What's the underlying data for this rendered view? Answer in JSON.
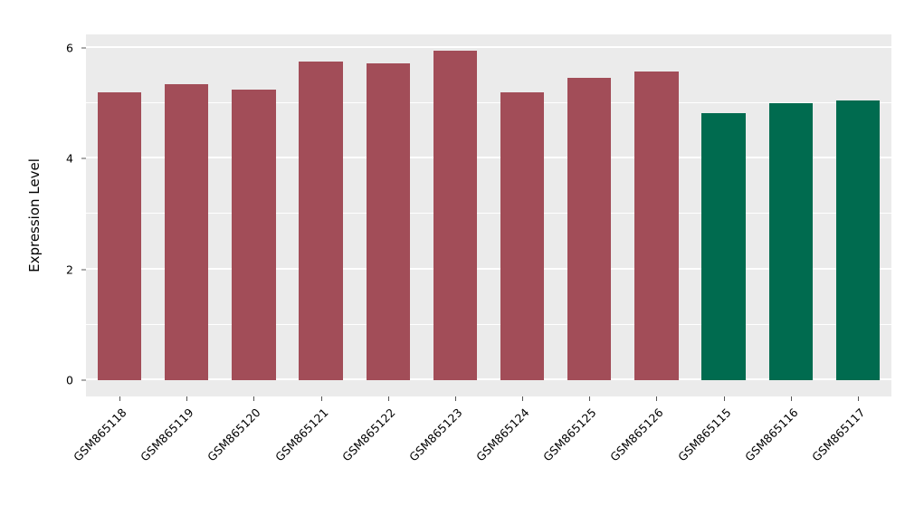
{
  "chart_data": {
    "type": "bar",
    "categories": [
      "GSM865118",
      "GSM865119",
      "GSM865120",
      "GSM865121",
      "GSM865122",
      "GSM865123",
      "GSM865124",
      "GSM865125",
      "GSM865126",
      "GSM865115",
      "GSM865116",
      "GSM865117"
    ],
    "values": [
      5.2,
      5.35,
      5.25,
      5.75,
      5.72,
      5.95,
      5.2,
      5.47,
      5.57,
      4.82,
      5.0,
      5.05
    ],
    "bar_colors": [
      "#A24D58",
      "#A24D58",
      "#A24D58",
      "#A24D58",
      "#A24D58",
      "#A24D58",
      "#A24D58",
      "#A24D58",
      "#A24D58",
      "#006B4F",
      "#006B4F",
      "#006B4F"
    ],
    "group_colors": {
      "red_group": "#A24D58",
      "green_group": "#006B4F"
    },
    "title": "",
    "xlabel": "",
    "ylabel": "Expression Level",
    "ylim": [
      0,
      6
    ],
    "y_major_ticks": [
      0,
      2,
      4,
      6
    ],
    "y_minor_ticks": [
      1,
      3,
      5
    ],
    "grid": true,
    "legend": "none",
    "panel_background": "#EBEBEB",
    "grid_color": "#FFFFFF",
    "bar_width_fraction": 0.65,
    "y_expansion": 0.2975,
    "y_scale_max": 6.2475
  }
}
